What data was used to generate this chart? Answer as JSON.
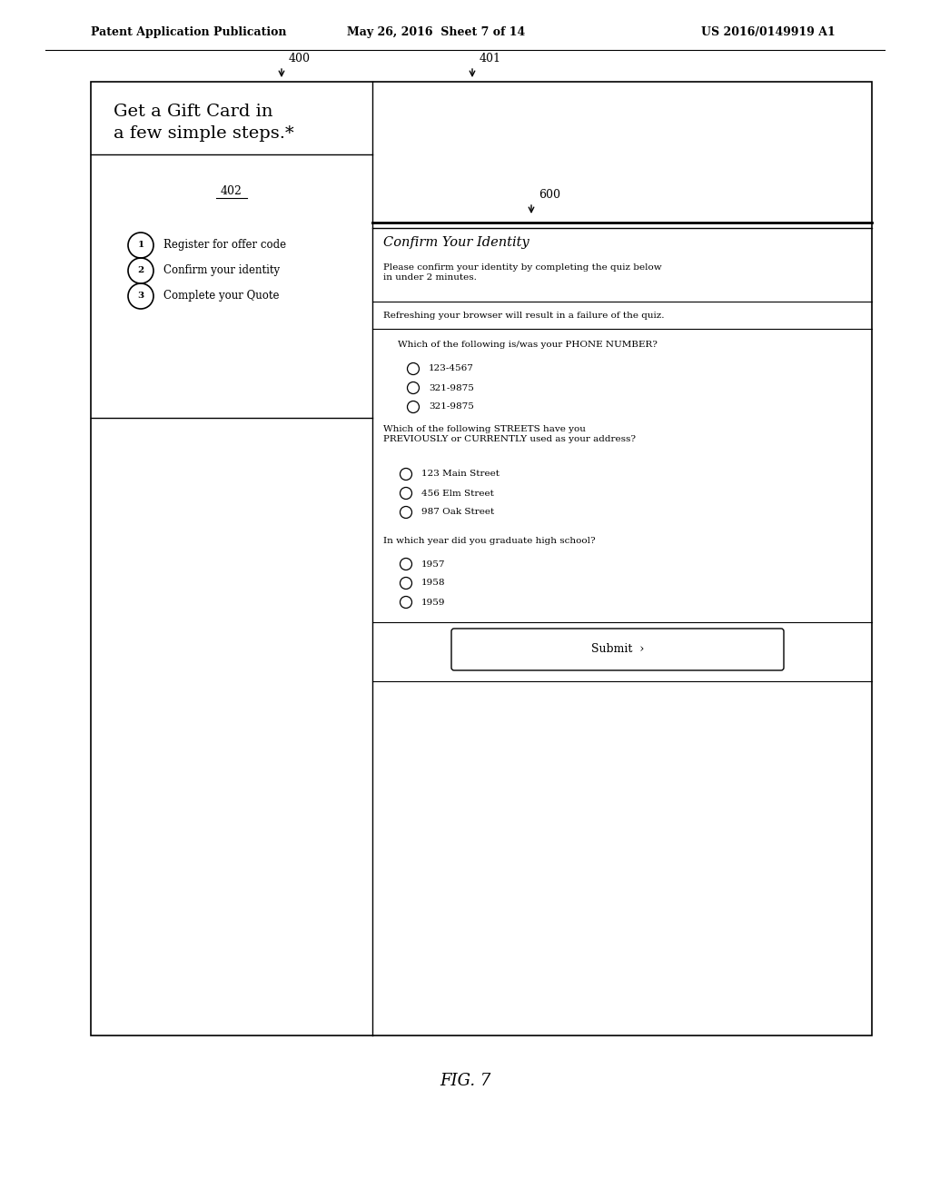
{
  "header_left": "Patent Application Publication",
  "header_mid": "May 26, 2016  Sheet 7 of 14",
  "header_right": "US 2016/0149919 A1",
  "fig_label": "FIG. 7",
  "label_400": "400",
  "label_401": "401",
  "label_402": "402",
  "label_600": "600",
  "title_text": "Get a Gift Card in\na few simple steps.*",
  "steps": [
    {
      "num": "1",
      "text": "Register for offer code"
    },
    {
      "num": "2",
      "text": "Confirm your identity"
    },
    {
      "num": "3",
      "text": "Complete your Quote"
    }
  ],
  "confirm_title": "Confirm Your Identity",
  "confirm_desc": "Please confirm your identity by completing the quiz below\nin under 2 minutes.",
  "warning_text": "Refreshing your browser will result in a failure of the quiz.",
  "q1_text": "Which of the following is/was your PHONE NUMBER?",
  "q1_options": [
    "123-4567",
    "321-9875",
    "321-9875"
  ],
  "q2_text": "Which of the following STREETS have you\nPREVIOUSLY or CURRENTLY used as your address?",
  "q2_options": [
    "123 Main Street",
    "456 Elm Street",
    "987 Oak Street"
  ],
  "q3_text": "In which year did you graduate high school?",
  "q3_options": [
    "1957",
    "1958",
    "1959"
  ],
  "submit_text": "Submit  ›",
  "bg_color": "#ffffff",
  "border_color": "#000000",
  "text_color": "#000000"
}
